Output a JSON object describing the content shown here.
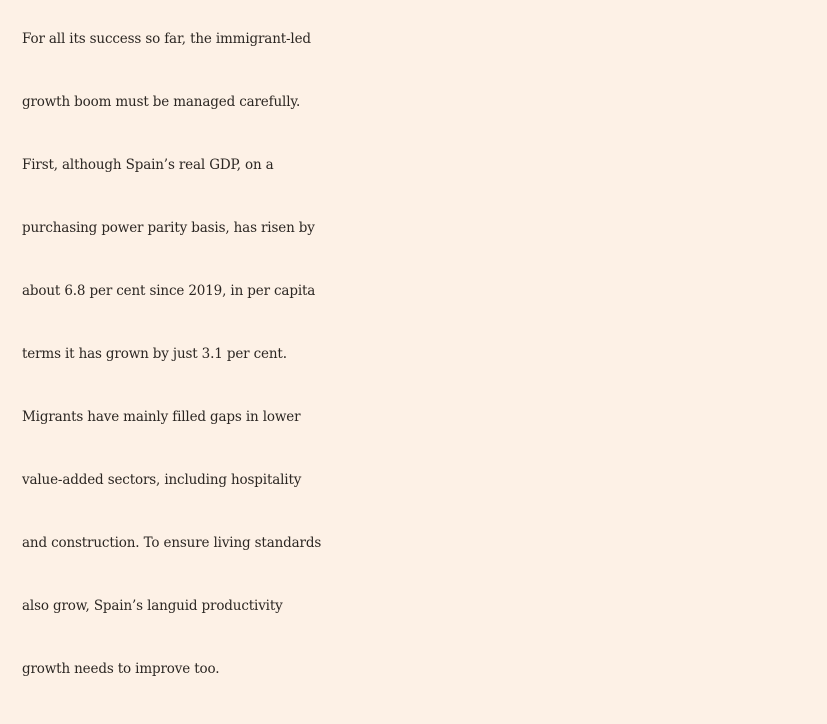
{
  "article": {
    "paragraph_lines": [
      "For all its success so far, the immigrant-led",
      "growth boom must be managed carefully.",
      "First, although Spain’s real GDP, on a",
      "purchasing power parity basis, has risen by",
      "about 6.8 per cent since 2019, in per capita",
      "terms it has grown by just 3.1 per cent.",
      "Migrants have mainly filled gaps in lower",
      "value-added sectors, including hospitality",
      "and construction. To ensure living standards",
      "also grow, Spain’s languid productivity",
      "growth needs to improve too."
    ]
  },
  "colors": {
    "background": "#fdf1e6",
    "text": "#2b2622"
  }
}
